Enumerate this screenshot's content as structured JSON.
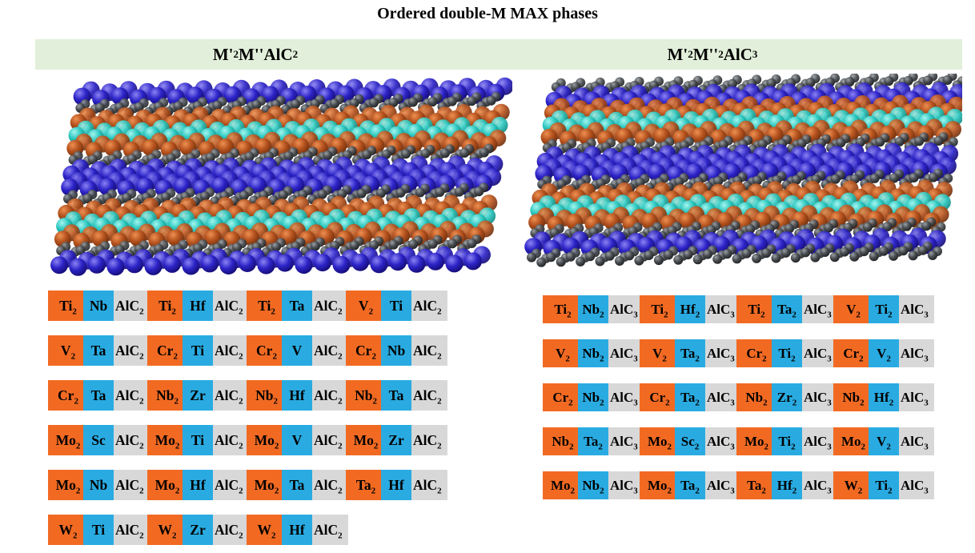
{
  "title": "Ordered double-M MAX phases",
  "banner": {
    "background": "#E2EFDA",
    "left_header": [
      {
        "t": "M'"
      },
      {
        "s": "2"
      },
      {
        "t": "M''AlC"
      },
      {
        "s": "2"
      }
    ],
    "right_header": [
      {
        "t": "M'"
      },
      {
        "s": "2"
      },
      {
        "t": "M''"
      },
      {
        "s": "2"
      },
      {
        "t": "AlC"
      },
      {
        "s": "3"
      }
    ]
  },
  "label_colors": {
    "m_prime_bg": "#F26A22",
    "m_doubleprime_bg": "#29ABE2",
    "alc_bg": "#D8D8D8",
    "text": "#000000"
  },
  "left_grid": {
    "m1_sub": "2",
    "m2_sub": "",
    "suffix": "AlC",
    "suffix_sub": "2",
    "items": [
      {
        "a": "Ti",
        "b": "Nb"
      },
      {
        "a": "Ti",
        "b": "Hf"
      },
      {
        "a": "Ti",
        "b": "Ta"
      },
      {
        "a": "V",
        "b": "Ti"
      },
      {
        "a": "V",
        "b": "Ta"
      },
      {
        "a": "Cr",
        "b": "Ti"
      },
      {
        "a": "Cr",
        "b": "V"
      },
      {
        "a": "Cr",
        "b": "Nb"
      },
      {
        "a": "Cr",
        "b": "Ta"
      },
      {
        "a": "Nb",
        "b": "Zr"
      },
      {
        "a": "Nb",
        "b": "Hf"
      },
      {
        "a": "Nb",
        "b": "Ta"
      },
      {
        "a": "Mo",
        "b": "Sc"
      },
      {
        "a": "Mo",
        "b": "Ti"
      },
      {
        "a": "Mo",
        "b": "V"
      },
      {
        "a": "Mo",
        "b": "Zr"
      },
      {
        "a": "Mo",
        "b": "Nb"
      },
      {
        "a": "Mo",
        "b": "Hf"
      },
      {
        "a": "Mo",
        "b": "Ta"
      },
      {
        "a": "Ta",
        "b": "Hf"
      },
      {
        "a": "W",
        "b": "Ti"
      },
      {
        "a": "W",
        "b": "Zr"
      },
      {
        "a": "W",
        "b": "Hf"
      }
    ]
  },
  "right_grid": {
    "m1_sub": "2",
    "m2_sub": "2",
    "suffix": "AlC",
    "suffix_sub": "3",
    "items": [
      {
        "a": "Ti",
        "b": "Nb"
      },
      {
        "a": "Ti",
        "b": "Hf"
      },
      {
        "a": "Ti",
        "b": "Ta"
      },
      {
        "a": "V",
        "b": "Ti"
      },
      {
        "a": "V",
        "b": "Nb"
      },
      {
        "a": "V",
        "b": "Ta"
      },
      {
        "a": "Cr",
        "b": "Ti"
      },
      {
        "a": "Cr",
        "b": "V"
      },
      {
        "a": "Cr",
        "b": "Nb"
      },
      {
        "a": "Cr",
        "b": "Ta"
      },
      {
        "a": "Nb",
        "b": "Zr"
      },
      {
        "a": "Nb",
        "b": "Hf"
      },
      {
        "a": "Nb",
        "b": "Ta"
      },
      {
        "a": "Mo",
        "b": "Sc"
      },
      {
        "a": "Mo",
        "b": "Ti"
      },
      {
        "a": "Mo",
        "b": "V"
      },
      {
        "a": "Mo",
        "b": "Nb"
      },
      {
        "a": "Mo",
        "b": "Ta"
      },
      {
        "a": "Ta",
        "b": "Hf"
      },
      {
        "a": "W",
        "b": "Ti"
      }
    ]
  },
  "structures": {
    "palette": {
      "Al": {
        "base": "#2D24C8",
        "hi": "#8A82F2",
        "dark": "#140B72",
        "r": 11
      },
      "C": {
        "base": "#4A4E52",
        "hi": "#9AA0A4",
        "dark": "#1E2022",
        "r": 6
      },
      "M1": {
        "base": "#B5521E",
        "hi": "#EE9052",
        "dark": "#6E2E0C",
        "r": 10.5
      },
      "M2": {
        "base": "#2EC8C0",
        "hi": "#A5F5EF",
        "dark": "#0E8A84",
        "r": 10.5
      }
    },
    "left": {
      "layers": [
        "Al",
        "C",
        "M1",
        "M2",
        "M1",
        "C",
        "Al",
        "Al",
        "C",
        "M1",
        "M2",
        "M1",
        "C",
        "Al"
      ]
    },
    "right": {
      "layers": [
        "C",
        "Al",
        "M1",
        "M2",
        "M1",
        "C",
        "Al",
        "Al",
        "C",
        "M1",
        "M2",
        "M1",
        "C",
        "Al",
        "C"
      ]
    }
  }
}
